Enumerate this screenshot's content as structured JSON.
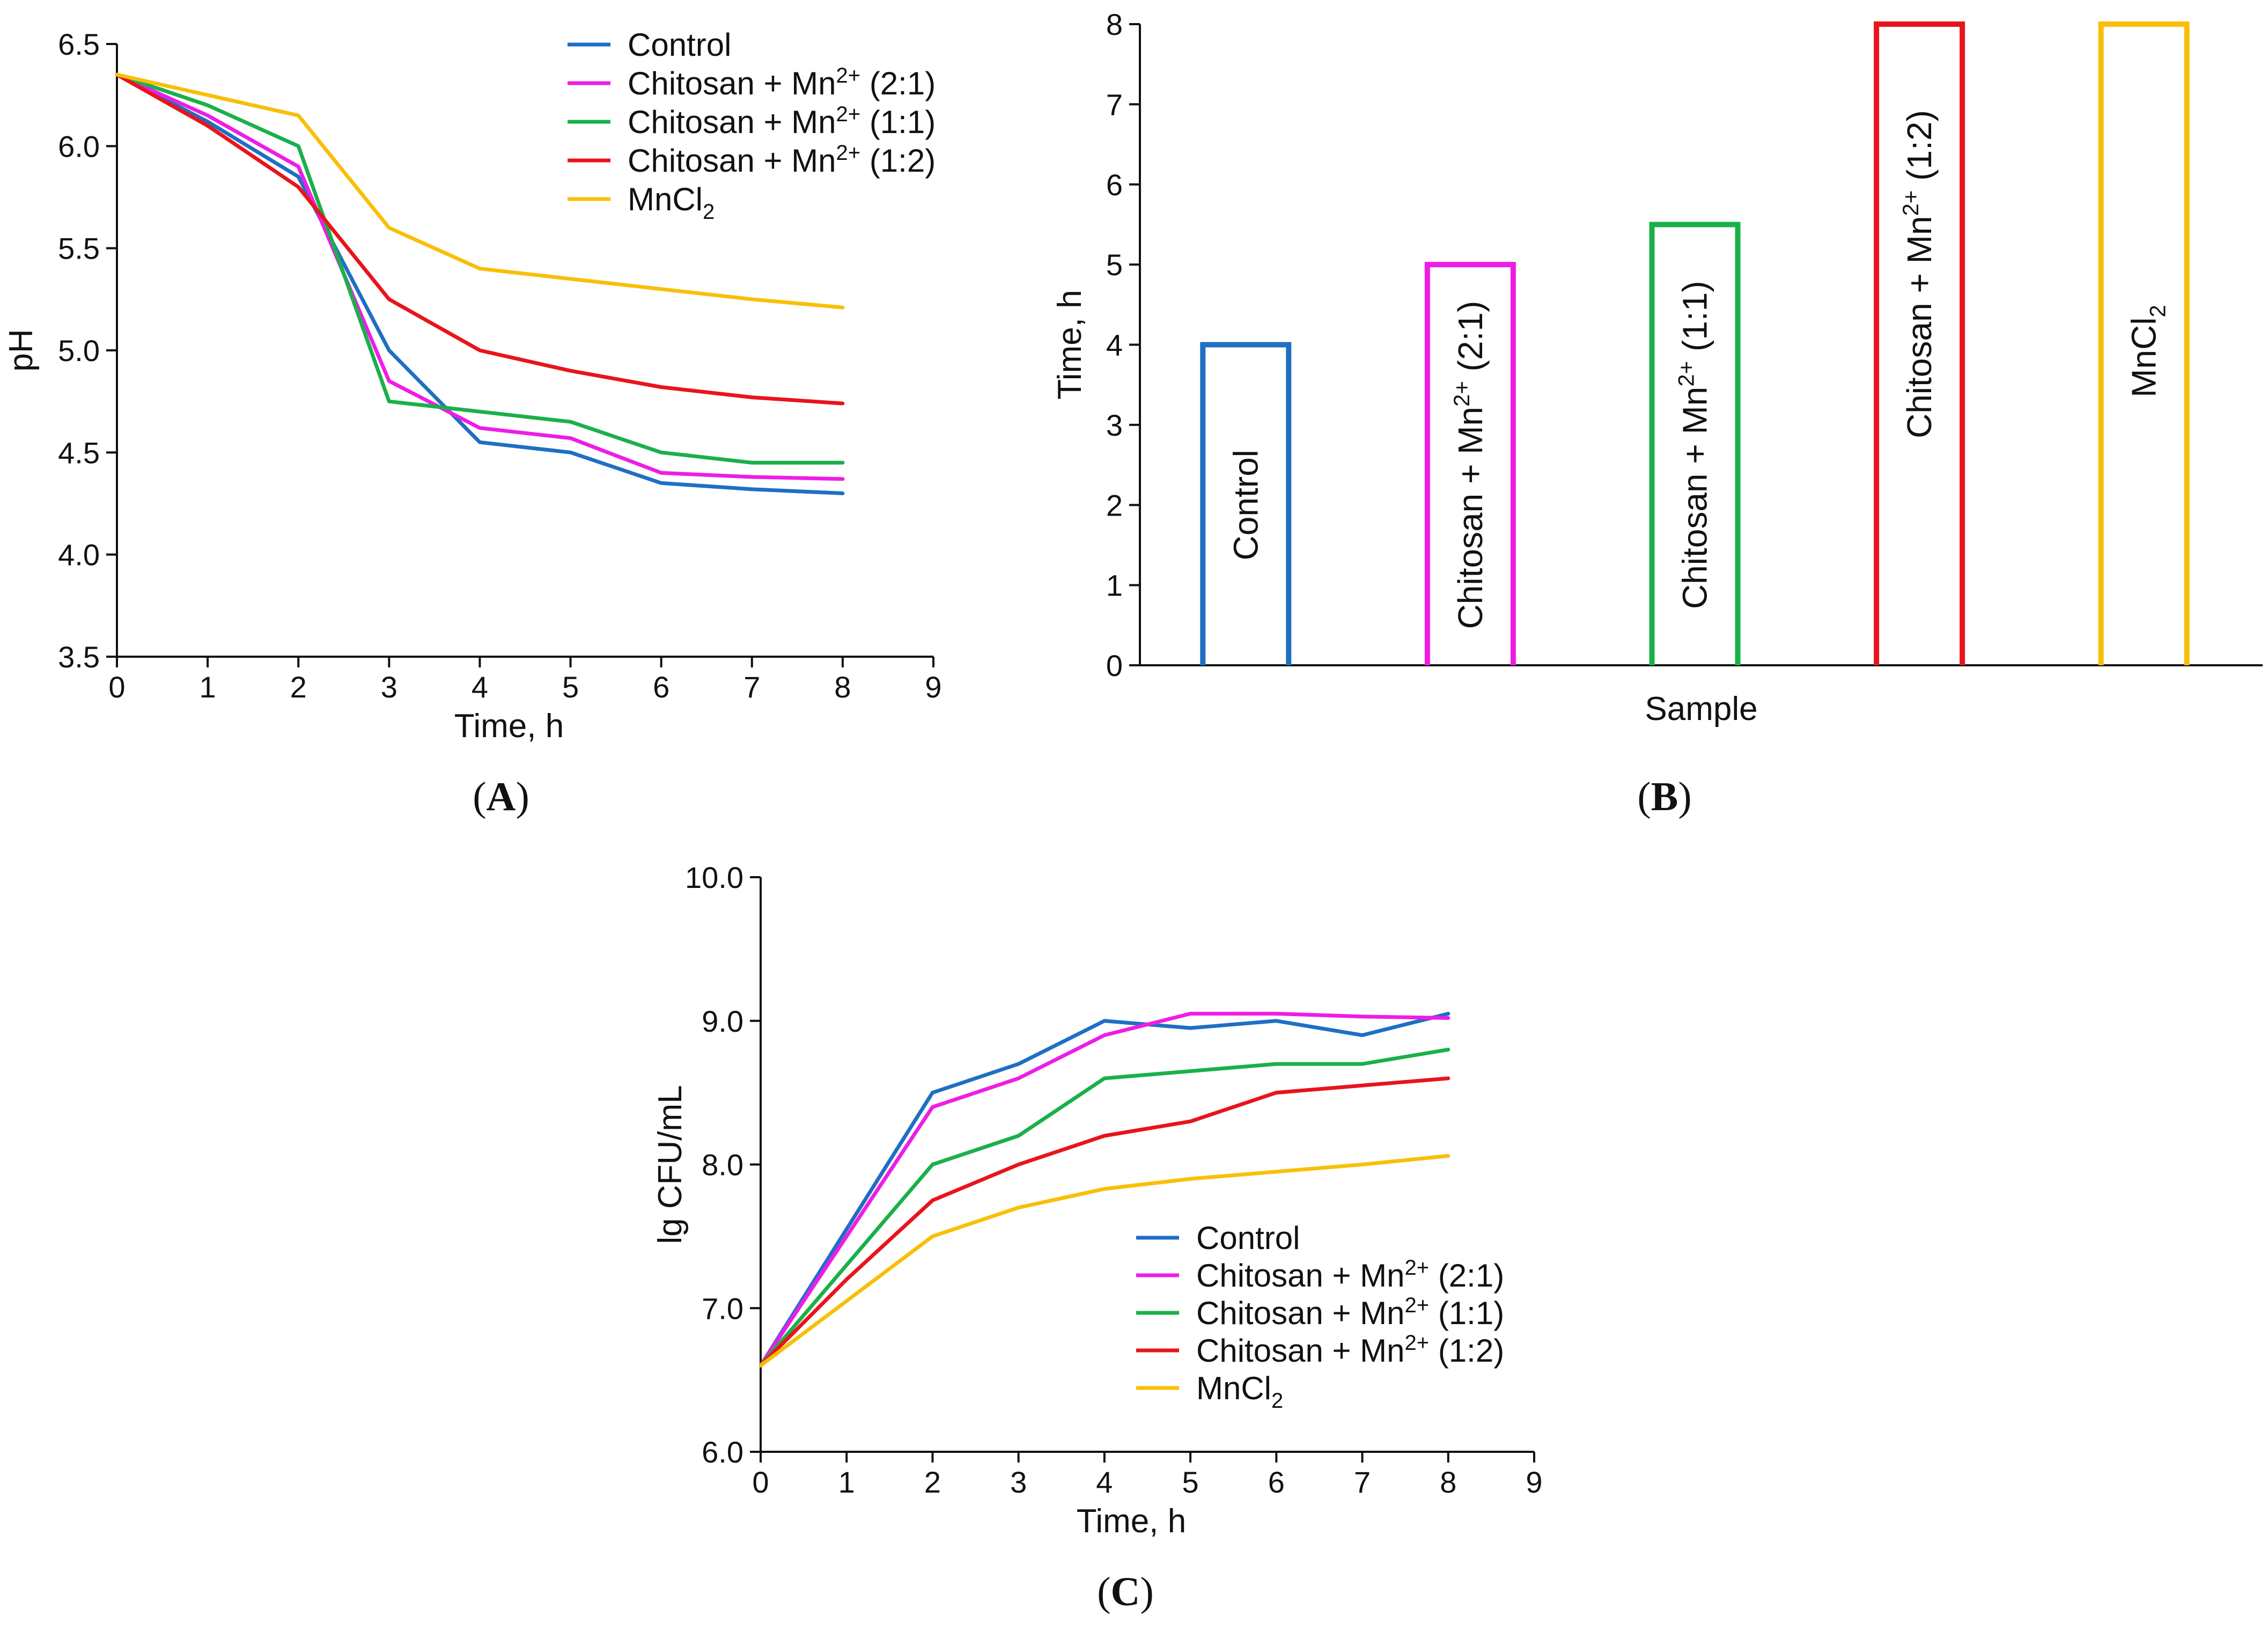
{
  "colors": {
    "control": "#1f6fc3",
    "chitosan_2_1": "#ee1de6",
    "chitosan_1_1": "#1ab04a",
    "chitosan_1_2": "#e8141c",
    "mncl2": "#f9bf08",
    "axis": "#111111"
  },
  "chart_data": [
    {
      "id": "A",
      "type": "line",
      "panel_label": "A",
      "xlabel": "Time, h",
      "ylabel": "pH",
      "xlim": [
        0,
        9
      ],
      "ylim": [
        3.5,
        6.5
      ],
      "xticks": [
        "0",
        "1",
        "2",
        "3",
        "4",
        "5",
        "6",
        "7",
        "8",
        "9"
      ],
      "yticks": [
        "3.5",
        "4.0",
        "4.5",
        "5.0",
        "5.5",
        "6.0",
        "6.5"
      ],
      "legend_position": "top-right",
      "x": [
        0,
        1,
        2,
        3,
        4,
        5,
        6,
        7,
        8
      ],
      "series": [
        {
          "key": "control",
          "name": "Control",
          "color": "#1f6fc3",
          "values": [
            6.35,
            6.12,
            5.85,
            5.0,
            4.55,
            4.5,
            4.35,
            4.32,
            4.3
          ]
        },
        {
          "key": "chitosan_2_1",
          "name_main": "Chitosan + Mn",
          "name_sup": "2+",
          "name_tail": " (2:1)",
          "color": "#ee1de6",
          "values": [
            6.35,
            6.15,
            5.9,
            4.85,
            4.62,
            4.57,
            4.4,
            4.38,
            4.37
          ]
        },
        {
          "key": "chitosan_1_1",
          "name_main": "Chitosan + Mn",
          "name_sup": "2+",
          "name_tail": " (1:1)",
          "color": "#1ab04a",
          "values": [
            6.35,
            6.2,
            6.0,
            4.75,
            4.7,
            4.65,
            4.5,
            4.45,
            4.45
          ]
        },
        {
          "key": "chitosan_1_2",
          "name_main": "Chitosan + Mn",
          "name_sup": "2+",
          "name_tail": " (1:2)",
          "color": "#e8141c",
          "values": [
            6.35,
            6.1,
            5.8,
            5.25,
            5.0,
            4.9,
            4.82,
            4.77,
            4.74
          ]
        },
        {
          "key": "mncl2",
          "name_main": "MnCl",
          "name_sub": "2",
          "color": "#f9bf08",
          "values": [
            6.35,
            6.25,
            6.15,
            5.6,
            5.4,
            5.35,
            5.3,
            5.25,
            5.21
          ]
        }
      ]
    },
    {
      "id": "B",
      "type": "bar",
      "panel_label": "B",
      "xlabel": "Sample",
      "ylabel": "Time, h",
      "ylim": [
        0,
        8
      ],
      "yticks": [
        "0",
        "1",
        "2",
        "3",
        "4",
        "5",
        "6",
        "7",
        "8"
      ],
      "bars": [
        {
          "key": "control",
          "label_main": "Control",
          "color": "#1f6fc3",
          "value": 4.0
        },
        {
          "key": "chitosan_2_1",
          "label_main": "Chitosan + Mn",
          "label_sup": "2+",
          "label_tail": " (2:1)",
          "color": "#ee1de6",
          "value": 5.0
        },
        {
          "key": "chitosan_1_1",
          "label_main": "Chitosan + Mn",
          "label_sup": "2+",
          "label_tail": " (1:1)",
          "color": "#1ab04a",
          "value": 5.5
        },
        {
          "key": "chitosan_1_2",
          "label_main": "Chitosan + Mn",
          "label_sup": "2+",
          "label_tail": " (1:2)",
          "color": "#e8141c",
          "value": 8.0
        },
        {
          "key": "mncl2",
          "label_main": "MnCl",
          "label_sub": "2",
          "color": "#f9bf08",
          "value": 8.0
        }
      ]
    },
    {
      "id": "C",
      "type": "line",
      "panel_label": "C",
      "xlabel": "Time, h",
      "ylabel": "lg CFU/mL",
      "xlim": [
        0,
        9
      ],
      "ylim": [
        6.0,
        10.0
      ],
      "xticks": [
        "0",
        "1",
        "2",
        "3",
        "4",
        "5",
        "6",
        "7",
        "8",
        "9"
      ],
      "yticks": [
        "6.0",
        "7.0",
        "8.0",
        "9.0",
        "10.0"
      ],
      "legend_position": "bottom-right",
      "x": [
        0,
        1,
        2,
        3,
        4,
        5,
        6,
        7,
        8
      ],
      "series": [
        {
          "key": "control",
          "name": "Control",
          "color": "#1f6fc3",
          "values": [
            6.6,
            7.55,
            8.5,
            8.7,
            9.0,
            8.95,
            9.0,
            8.9,
            9.05
          ]
        },
        {
          "key": "chitosan_2_1",
          "name_main": "Chitosan + Mn",
          "name_sup": "2+",
          "name_tail": " (2:1)",
          "color": "#ee1de6",
          "values": [
            6.6,
            7.5,
            8.4,
            8.6,
            8.9,
            9.05,
            9.05,
            9.03,
            9.02
          ]
        },
        {
          "key": "chitosan_1_1",
          "name_main": "Chitosan + Mn",
          "name_sup": "2+",
          "name_tail": " (1:1)",
          "color": "#1ab04a",
          "values": [
            6.6,
            7.3,
            8.0,
            8.2,
            8.6,
            8.65,
            8.7,
            8.7,
            8.8
          ]
        },
        {
          "key": "chitosan_1_2",
          "name_main": "Chitosan + Mn",
          "name_sup": "2+",
          "name_tail": " (1:2)",
          "color": "#e8141c",
          "values": [
            6.6,
            7.2,
            7.75,
            8.0,
            8.2,
            8.3,
            8.5,
            8.55,
            8.6
          ]
        },
        {
          "key": "mncl2",
          "name_main": "MnCl",
          "name_sub": "2",
          "color": "#f9bf08",
          "values": [
            6.6,
            7.05,
            7.5,
            7.7,
            7.83,
            7.9,
            7.95,
            8.0,
            8.06
          ]
        }
      ]
    }
  ]
}
